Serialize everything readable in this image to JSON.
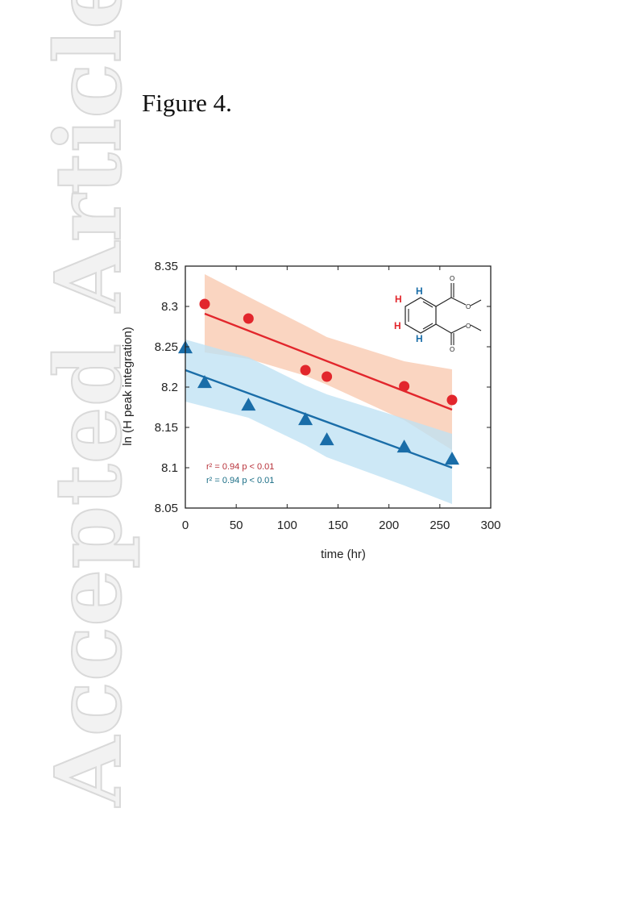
{
  "page": {
    "watermark": "Accepted Article",
    "figure_label": "Figure 4."
  },
  "chart_data": {
    "type": "scatter",
    "xlabel": "time (hr)",
    "ylabel": "ln (H peak integration)",
    "xlim": [
      0,
      300
    ],
    "ylim": [
      8.05,
      8.35
    ],
    "xticks": [
      "0",
      "50",
      "100",
      "150",
      "200",
      "250",
      "300"
    ],
    "yticks": [
      "8.05",
      "8.1",
      "8.15",
      "8.2",
      "8.25",
      "8.3",
      "8.35"
    ],
    "grid": false,
    "series": [
      {
        "marker": "circle",
        "color": "#e2262c",
        "band_color": "#f9c9b0",
        "x": [
          19,
          62,
          118,
          139,
          215,
          262
        ],
        "y": [
          8.303,
          8.285,
          8.221,
          8.213,
          8.201,
          8.184
        ],
        "fit": {
          "x": [
            19,
            262
          ],
          "y": [
            8.291,
            8.172
          ]
        },
        "band_upper": {
          "x": [
            19,
            62,
            118,
            139,
            215,
            262
          ],
          "y": [
            8.34,
            8.312,
            8.276,
            8.262,
            8.232,
            8.222
          ]
        },
        "band_lower": {
          "x": [
            19,
            62,
            118,
            139,
            215,
            262
          ],
          "y": [
            8.243,
            8.235,
            8.214,
            8.203,
            8.159,
            8.122
          ]
        },
        "stat_text": "r² = 0.94   p < 0.01"
      },
      {
        "marker": "triangle",
        "color": "#1a6da8",
        "band_color": "#bfe2f4",
        "x": [
          0,
          19,
          62,
          118,
          139,
          215,
          262
        ],
        "y": [
          8.248,
          8.205,
          8.177,
          8.159,
          8.134,
          8.125,
          8.11
        ],
        "fit": {
          "x": [
            0,
            262
          ],
          "y": [
            8.221,
            8.1
          ]
        },
        "band_upper": {
          "x": [
            0,
            62,
            118,
            139,
            215,
            262
          ],
          "y": [
            8.259,
            8.237,
            8.202,
            8.191,
            8.161,
            8.142
          ]
        },
        "band_lower": {
          "x": [
            0,
            62,
            118,
            139,
            215,
            262
          ],
          "y": [
            8.182,
            8.162,
            8.128,
            8.113,
            8.078,
            8.055
          ]
        },
        "stat_text": "r² = 0.94   p < 0.01"
      }
    ],
    "inset": {
      "h_labels": [
        {
          "text": "H",
          "color": "#1a6da8"
        },
        {
          "text": "H",
          "color": "#e2262c"
        },
        {
          "text": "H",
          "color": "#e2262c"
        },
        {
          "text": "H",
          "color": "#1a6da8"
        }
      ],
      "atom_labels": [
        "O",
        "O",
        "O",
        "O"
      ]
    }
  }
}
